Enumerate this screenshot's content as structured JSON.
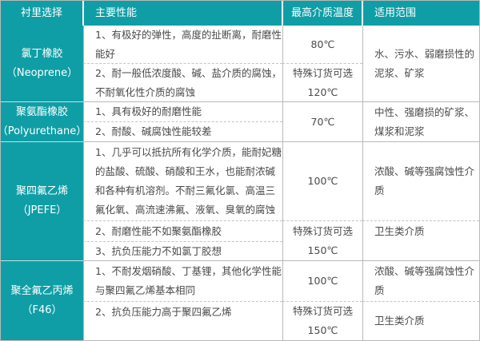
{
  "colors": {
    "header_bg": "#0f9ea6",
    "label_bg": "#0f9ea6",
    "text": "#4a4a4a"
  },
  "header": [
    "衬里选择",
    "主要性能",
    "最高介质温度",
    "适用范围"
  ],
  "rows": [
    {
      "name": [
        "氯丁橡胶",
        "（Neoprene）"
      ],
      "perf": [
        [
          "1、有极好的弹性，高度的扯断离，耐磨性",
          "能好"
        ],
        [
          "2、耐一般低浓度酸、碱、盐介质的腐蚀，",
          "不耐氧化性介质的腐蚀"
        ]
      ],
      "temp": [
        [
          "80℃"
        ],
        [
          "特殊订货可选",
          "120℃"
        ]
      ],
      "scope": [
        [
          "水、污水、弱磨损性的",
          "泥浆、矿浆"
        ]
      ]
    },
    {
      "name": [
        "聚氨酯橡胶",
        "（Polyurethane）"
      ],
      "perf": [
        [
          "1、具有极好的耐磨性能"
        ],
        [
          "2、耐酸、碱腐蚀性能较差"
        ]
      ],
      "temp": [
        [
          "70℃"
        ]
      ],
      "scope": [
        [
          "中性、强磨损的矿浆、",
          "煤浆和泥浆"
        ]
      ]
    },
    {
      "name": [
        "聚四氟乙烯",
        "（JPEFE）"
      ],
      "perf": [
        [
          "1、几乎可以抵抗所有化学介质，能耐妃糖",
          "的盐酸、硫酸、硝酸和王水，也能耐浓碱",
          "和各种有机溶剂。不耐三氟化氯、高温三",
          "氟化氧、高流速沸氟、液氧、臭氧的腐蚀"
        ],
        [
          "2、耐磨性能不如聚氨酯橡胶"
        ],
        [
          "3、抗负压能力不如氯丁胶想"
        ]
      ],
      "temp": [
        [
          "100℃"
        ],
        [
          "特殊订货可选",
          "150℃"
        ]
      ],
      "scope": [
        [
          "浓酸、碱等强腐蚀性介",
          "质"
        ],
        [
          "卫生类介质"
        ]
      ]
    },
    {
      "name": [
        "聚全氟乙丙烯",
        "（F46）"
      ],
      "perf": [
        [
          "1、不耐发烟硝酸、丁基锂，其他化学性能",
          "与聚四氟乙烯基本相同"
        ],
        [
          "2、抗负压能力高于聚四氟乙烯"
        ]
      ],
      "temp": [
        [
          "100℃"
        ],
        [
          "特殊订货可选",
          "150℃"
        ]
      ],
      "scope": [
        [
          "浓酸、碱等强腐蚀性介",
          "质"
        ],
        [
          "卫生类介质"
        ]
      ]
    }
  ]
}
